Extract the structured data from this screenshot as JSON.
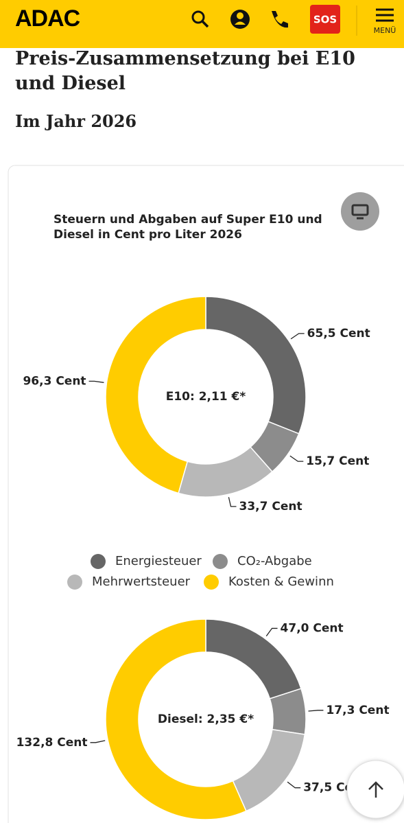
{
  "header": {
    "logo": "ADAC",
    "sos": "SOS",
    "menu": "MENÜ"
  },
  "heading": "Preis-Zusammensetzung bei E10 und Diesel",
  "subheading": "Im Jahr 2026",
  "chart_data": [
    {
      "type": "pie",
      "title": "Steuern und Abgaben auf Super E10 und Diesel in Cent pro Liter 2026",
      "center_label": "E10: 2,11 €*",
      "categories": [
        "Energiesteuer",
        "CO₂-Abgabe",
        "Mehrwertsteuer",
        "Kosten & Gewinn"
      ],
      "colors": [
        "#666666",
        "#8c8c8c",
        "#b8b8b8",
        "#ffcc00"
      ],
      "values": [
        65.5,
        15.7,
        33.7,
        96.3
      ],
      "value_labels": [
        "65,5 Cent",
        "15,7 Cent",
        "33,7 Cent",
        "96,3 Cent"
      ]
    },
    {
      "type": "pie",
      "center_label": "Diesel: 2,35 €*",
      "colors": [
        "#666666",
        "#8c8c8c",
        "#b8b8b8",
        "#ffcc00"
      ],
      "values": [
        47.0,
        17.3,
        37.5,
        132.8
      ],
      "value_labels": [
        "47,0 Cent",
        "17,3 Cent",
        "37,5 Cent",
        "132,8 Cent"
      ]
    }
  ]
}
